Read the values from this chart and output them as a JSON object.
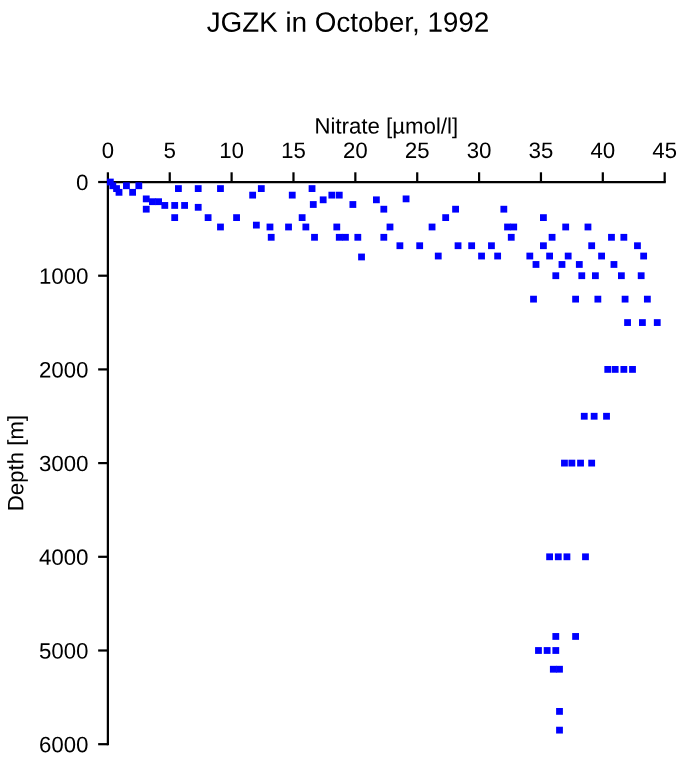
{
  "chart_data": {
    "type": "scatter",
    "title": "JGZK in October, 1992",
    "xlabel": "Nitrate [µmol/l]",
    "ylabel": "Depth [m]",
    "xlim": [
      0,
      45
    ],
    "xticks": [
      0,
      5,
      10,
      15,
      20,
      25,
      30,
      35,
      40,
      45
    ],
    "ylim": [
      6000,
      0
    ],
    "yticks": [
      0,
      1000,
      2000,
      3000,
      4000,
      5000,
      6000
    ],
    "grid": false,
    "marker": "square",
    "series": [
      {
        "color": "#0000ff",
        "x": [
          0.2,
          0.4,
          0.7,
          0.9,
          1.5,
          2,
          2.5,
          3.1,
          3.6,
          3.1,
          4.1,
          4.6,
          5.4,
          5.7,
          6.2,
          5.4,
          7.3,
          9.1,
          7.3,
          8.1,
          9.1,
          10.4,
          11.7,
          12.4,
          12,
          13.1,
          13.2,
          14.6,
          14.9,
          15.7,
          16,
          16.5,
          16.6,
          16.7,
          17.4,
          18.1,
          18.7,
          18.5,
          18.7,
          19.2,
          19.8,
          20.2,
          20.5,
          21.7,
          22.3,
          22.3,
          22.8,
          23.6,
          24.1,
          25.2,
          26.2,
          26.7,
          27.3,
          28.1,
          28.3,
          29.4,
          30.2,
          31,
          31.5,
          32,
          32.3,
          32.6,
          32.8,
          34.1,
          34.4,
          34.6,
          35.2,
          35.2,
          35.7,
          36.2,
          35.9,
          37,
          36.7,
          37.2,
          37.8,
          38.1,
          38.3,
          38.8,
          39.1,
          39.6,
          39.4,
          39.9,
          40.7,
          40.9,
          41.5,
          41.7,
          41.8,
          42.8,
          43.1,
          43.3,
          43.6,
          42,
          43.2,
          44.4,
          40.4,
          41,
          41.7,
          42.4,
          38.5,
          39.3,
          40.3,
          36.9,
          37.5,
          38.2,
          39.1,
          35.7,
          36.4,
          37.1,
          38.6,
          36.2,
          37.8,
          34.8,
          35.5,
          36.2,
          36,
          36.5,
          36.5,
          36.5
        ],
        "values": [
          0,
          40,
          70,
          110,
          40,
          110,
          40,
          180,
          210,
          290,
          210,
          250,
          250,
          70,
          250,
          380,
          70,
          70,
          270,
          380,
          480,
          380,
          140,
          70,
          460,
          480,
          590,
          480,
          140,
          380,
          480,
          70,
          240,
          590,
          190,
          140,
          140,
          480,
          590,
          590,
          240,
          590,
          800,
          190,
          290,
          590,
          480,
          680,
          180,
          680,
          480,
          790,
          380,
          290,
          680,
          680,
          790,
          680,
          790,
          290,
          480,
          590,
          480,
          790,
          1250,
          880,
          380,
          680,
          790,
          1000,
          590,
          480,
          880,
          790,
          1250,
          880,
          1000,
          480,
          680,
          1250,
          1000,
          790,
          590,
          880,
          1000,
          590,
          1250,
          680,
          1000,
          790,
          1250,
          1500,
          1500,
          1500,
          2000,
          2000,
          2000,
          2000,
          2500,
          2500,
          2500,
          3000,
          3000,
          3000,
          3000,
          4000,
          4000,
          4000,
          4000,
          4850,
          4850,
          5000,
          5000,
          5000,
          5200,
          5200,
          5650,
          5850
        ]
      }
    ]
  }
}
